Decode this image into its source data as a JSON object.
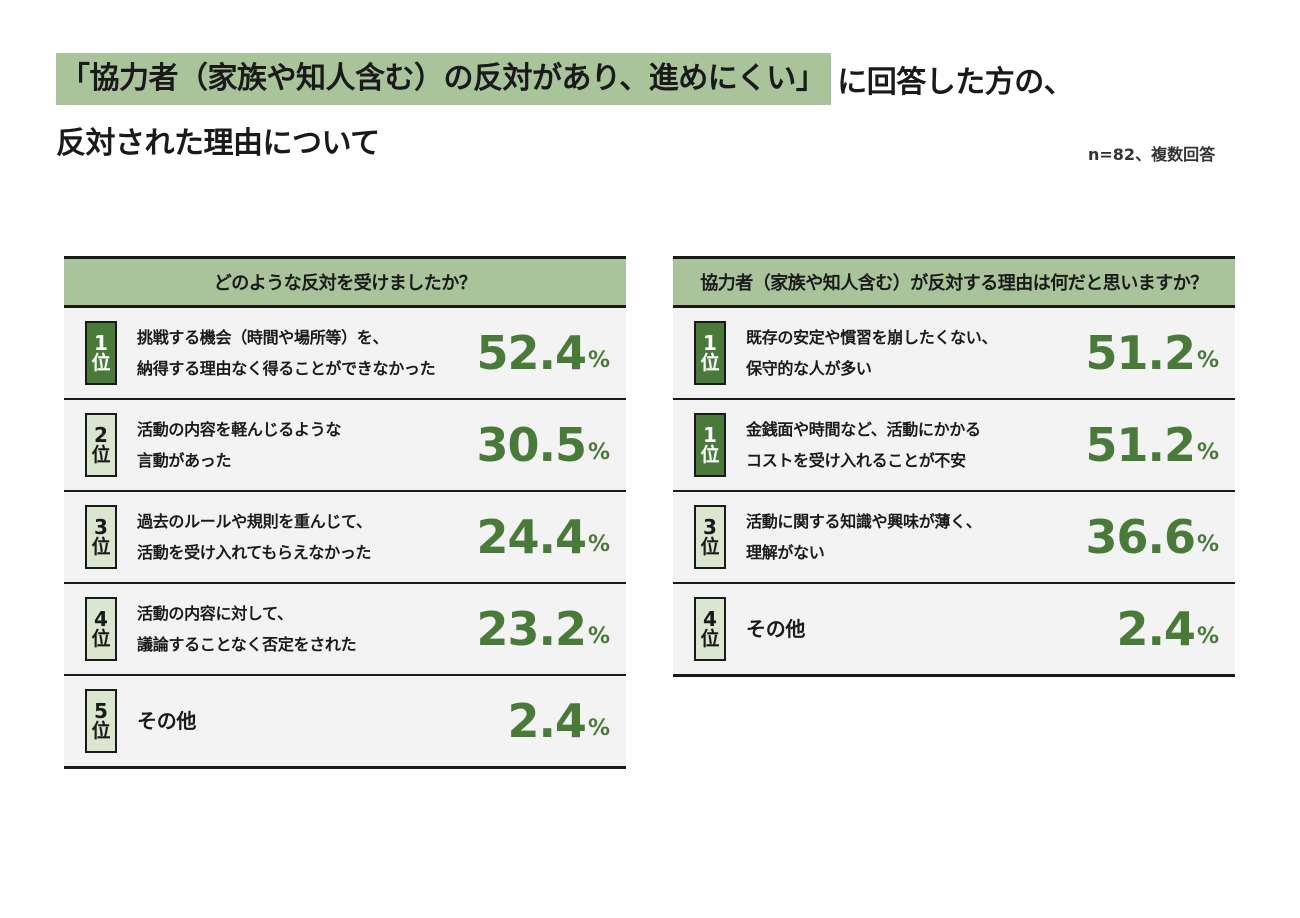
{
  "title": {
    "highlight": "「協力者（家族や知人含む）の反対があり、進めにくい」",
    "rest": "に回答した方の、",
    "line2": "反対された理由について"
  },
  "note": "n=82、複数回答",
  "chart_data": [
    {
      "type": "table",
      "title": "どのような反対を受けましたか？",
      "rank_suffix": "位",
      "unit": "%",
      "rows": [
        {
          "rank": "1",
          "label": "挑戦する機会（時間や場所等）を、\n納得する理由なく得ることができなかった",
          "value": 52.4,
          "value_text": "52.4"
        },
        {
          "rank": "2",
          "label": "活動の内容を軽んじるような\n言動があった",
          "value": 30.5,
          "value_text": "30.5"
        },
        {
          "rank": "3",
          "label": "過去のルールや規則を重んじて、\n活動を受け入れてもらえなかった",
          "value": 24.4,
          "value_text": "24.4"
        },
        {
          "rank": "4",
          "label": "活動の内容に対して、\n議論することなく否定をされた",
          "value": 23.2,
          "value_text": "23.2"
        },
        {
          "rank": "5",
          "label": "その他",
          "value": 2.4,
          "value_text": "2.4"
        }
      ]
    },
    {
      "type": "table",
      "title": "協力者（家族や知人含む）が反対する理由は何だと思いますか？",
      "rank_suffix": "位",
      "unit": "%",
      "rows": [
        {
          "rank": "1",
          "label": "既存の安定や慣習を崩したくない、\n保守的な人が多い",
          "value": 51.2,
          "value_text": "51.2"
        },
        {
          "rank": "1",
          "label": "金銭面や時間など、活動にかかる\nコストを受け入れることが不安",
          "value": 51.2,
          "value_text": "51.2"
        },
        {
          "rank": "3",
          "label": "活動に関する知識や興味が薄く、\n理解がない",
          "value": 36.6,
          "value_text": "36.6"
        },
        {
          "rank": "4",
          "label": "その他",
          "value": 2.4,
          "value_text": "2.4"
        }
      ]
    }
  ],
  "colors": {
    "accent_green": "#4a7a3a",
    "header_green": "#a9c49a",
    "rank_light": "#d9e7cf",
    "row_bg": "#f3f3f3"
  }
}
